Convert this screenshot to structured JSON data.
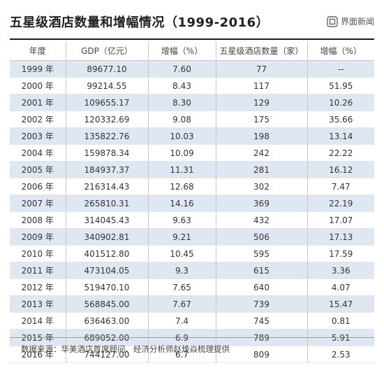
{
  "title": "五星级酒店数量和增幅情况（1999-2016）",
  "brand": {
    "name": "界面新闻",
    "icon": "jiemian-logo-icon"
  },
  "table": {
    "headers": [
      "年度",
      "GDP（亿元）",
      "增幅（%）",
      "五星级酒店数量（家）",
      "增幅（%）"
    ],
    "rows": [
      [
        "1999 年",
        "89677.10",
        "7.60",
        "77",
        "--"
      ],
      [
        "2000 年",
        "99214.55",
        "8.43",
        "117",
        "51.95"
      ],
      [
        "2001 年",
        "109655.17",
        "8.30",
        "129",
        "10.26"
      ],
      [
        "2002 年",
        "120332.69",
        "9.08",
        "175",
        "35.66"
      ],
      [
        "2003 年",
        "135822.76",
        "10.03",
        "198",
        "13.14"
      ],
      [
        "2004 年",
        "159878.34",
        "10.09",
        "242",
        "22.22"
      ],
      [
        "2005 年",
        "184937.37",
        "11.31",
        "281",
        "16.12"
      ],
      [
        "2006 年",
        "216314.43",
        "12.68",
        "302",
        "7.47"
      ],
      [
        "2007 年",
        "265810.31",
        "14.16",
        "369",
        "22.19"
      ],
      [
        "2008 年",
        "314045.43",
        "9.63",
        "432",
        "17.07"
      ],
      [
        "2009 年",
        "340902.81",
        "9.21",
        "506",
        "17.13"
      ],
      [
        "2010 年",
        "401512.80",
        "10.45",
        "595",
        "17.59"
      ],
      [
        "2011 年",
        "473104.05",
        "9.3",
        "615",
        "3.36"
      ],
      [
        "2012 年",
        "519470.10",
        "7.65",
        "640",
        "4.07"
      ],
      [
        "2013 年",
        "568845.00",
        "7.67",
        "739",
        "15.47"
      ],
      [
        "2014 年",
        "636463.00",
        "7.4",
        "745",
        "0.81"
      ],
      [
        "2015 年",
        "689052.00",
        "6.9",
        "789",
        "5.91"
      ],
      [
        "2016 年",
        "744127.00",
        "6.7",
        "809",
        "2.53"
      ]
    ]
  },
  "source": "数据来源：华美酒店首席顾问、经济分析师赵焕焱梳理提供",
  "colors": {
    "stripe": "#dfe8f2",
    "rule": "#1a1a1a",
    "grid": "#c9c9c9"
  }
}
